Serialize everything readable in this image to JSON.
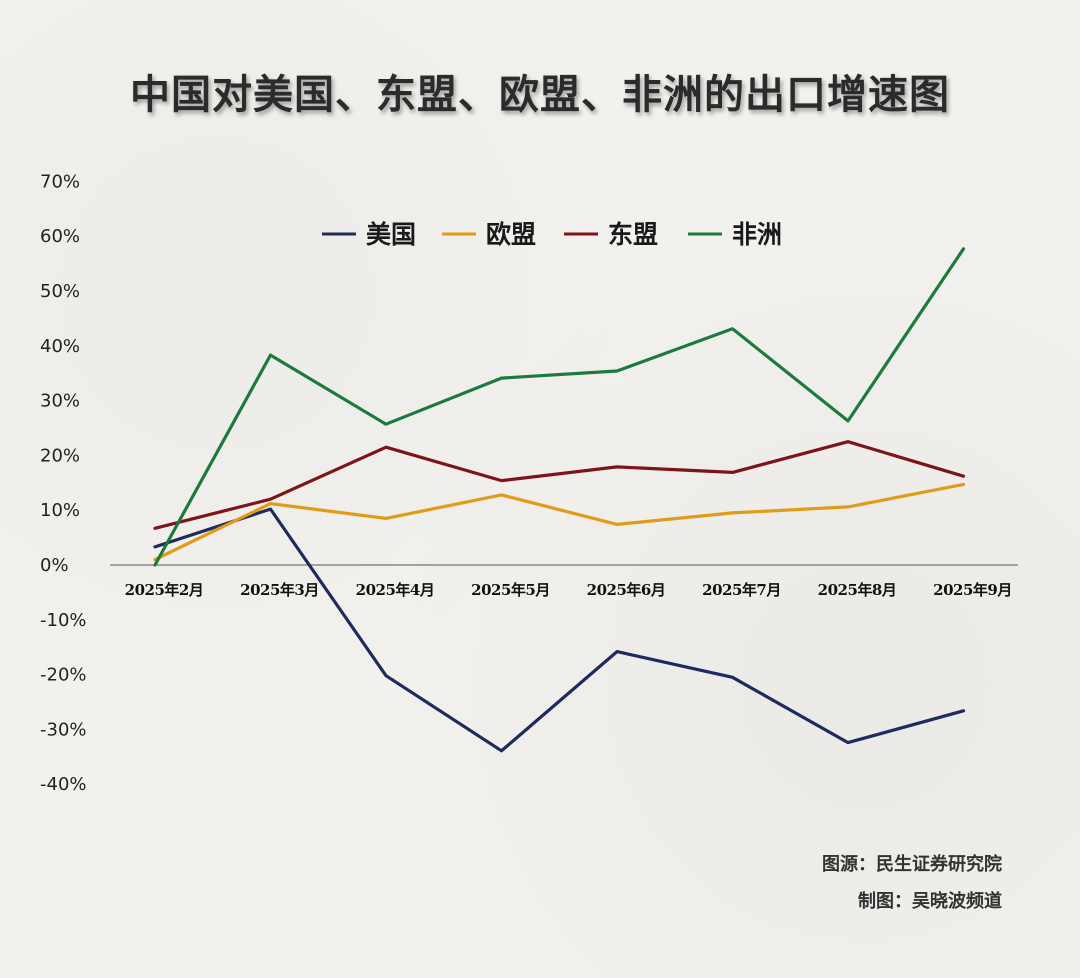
{
  "title": "中国对美国、东盟、欧盟、非洲的出口增速图",
  "credits": {
    "source": "图源：民生证券研究院",
    "maker": "制图：吴晓波频道"
  },
  "chart_data": {
    "type": "line",
    "categories": [
      "2025年2月",
      "2025年3月",
      "2025年4月",
      "2025年5月",
      "2025年6月",
      "2025年7月",
      "2025年8月",
      "2025年9月"
    ],
    "y_ticks": [
      "70%",
      "60%",
      "50%",
      "40%",
      "30%",
      "20%",
      "10%",
      "0%",
      "-10%",
      "-20%",
      "-30%",
      "-40%"
    ],
    "ylim": [
      -40,
      70
    ],
    "legend_position": "top-center",
    "series": [
      {
        "name": "美国",
        "color": "#1f2a5e",
        "values": [
          3.3,
          10.2,
          -20.2,
          -33.9,
          -15.8,
          -20.5,
          -32.4,
          -26.6
        ]
      },
      {
        "name": "欧盟",
        "color": "#e09b1a",
        "values": [
          1.0,
          11.2,
          8.5,
          12.8,
          7.4,
          9.5,
          10.6,
          14.7
        ]
      },
      {
        "name": "东盟",
        "color": "#7d1518",
        "values": [
          6.7,
          12.0,
          21.5,
          15.4,
          17.9,
          16.9,
          22.5,
          16.2
        ]
      },
      {
        "name": "非洲",
        "color": "#1d7a3e",
        "values": [
          0.0,
          38.3,
          25.7,
          34.1,
          35.4,
          43.1,
          26.3,
          57.7
        ]
      }
    ]
  }
}
